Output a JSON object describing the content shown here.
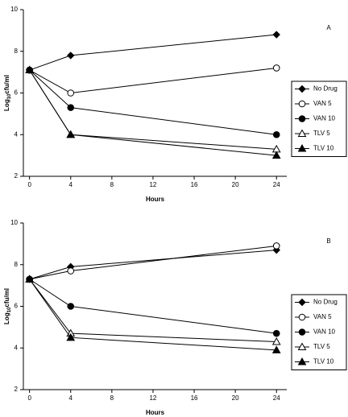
{
  "chart_data": [
    {
      "type": "line",
      "panel_label": "A",
      "xlabel": "Hours",
      "ylabel": {
        "text": "Log",
        "subscript": "10",
        "suffix": "cfu/ml"
      },
      "x": [
        0,
        4,
        24
      ],
      "xlim": [
        -0.6,
        25
      ],
      "xticks": [
        0,
        4,
        8,
        12,
        16,
        20,
        24
      ],
      "ylim": [
        2,
        10
      ],
      "yticks": [
        2,
        4,
        6,
        8,
        10
      ],
      "series": [
        {
          "name": "No Drug",
          "color": "#000000",
          "marker": "diamond",
          "filled": true,
          "values": [
            7.1,
            7.8,
            8.8
          ]
        },
        {
          "name": "VAN 5",
          "color": "#000000",
          "marker": "circle",
          "filled": false,
          "values": [
            7.1,
            6.0,
            7.2
          ]
        },
        {
          "name": "VAN 10",
          "color": "#000000",
          "marker": "circle",
          "filled": true,
          "values": [
            7.1,
            5.3,
            4.0
          ]
        },
        {
          "name": "TLV 5",
          "color": "#000000",
          "marker": "triangle",
          "filled": false,
          "values": [
            7.1,
            4.0,
            3.3
          ]
        },
        {
          "name": "TLV 10",
          "color": "#000000",
          "marker": "triangle",
          "filled": true,
          "values": [
            7.1,
            4.0,
            3.0
          ]
        }
      ]
    },
    {
      "type": "line",
      "panel_label": "B",
      "xlabel": "Hours",
      "ylabel": {
        "text": "Log",
        "subscript": "10",
        "suffix": "cfu/ml"
      },
      "x": [
        0,
        4,
        24
      ],
      "xlim": [
        -0.6,
        25
      ],
      "xticks": [
        0,
        4,
        8,
        12,
        16,
        20,
        24
      ],
      "ylim": [
        2,
        10
      ],
      "yticks": [
        2,
        4,
        6,
        8,
        10
      ],
      "series": [
        {
          "name": "No Drug",
          "color": "#000000",
          "marker": "diamond",
          "filled": true,
          "values": [
            7.3,
            7.9,
            8.7
          ]
        },
        {
          "name": "VAN 5",
          "color": "#000000",
          "marker": "circle",
          "filled": false,
          "values": [
            7.3,
            7.7,
            8.9
          ]
        },
        {
          "name": "VAN 10",
          "color": "#000000",
          "marker": "circle",
          "filled": true,
          "values": [
            7.3,
            6.0,
            4.7
          ]
        },
        {
          "name": "TLV 5",
          "color": "#000000",
          "marker": "triangle",
          "filled": false,
          "values": [
            7.3,
            4.7,
            4.3
          ]
        },
        {
          "name": "TLV 10",
          "color": "#000000",
          "marker": "triangle",
          "filled": true,
          "values": [
            7.3,
            4.5,
            3.9
          ]
        }
      ]
    }
  ]
}
